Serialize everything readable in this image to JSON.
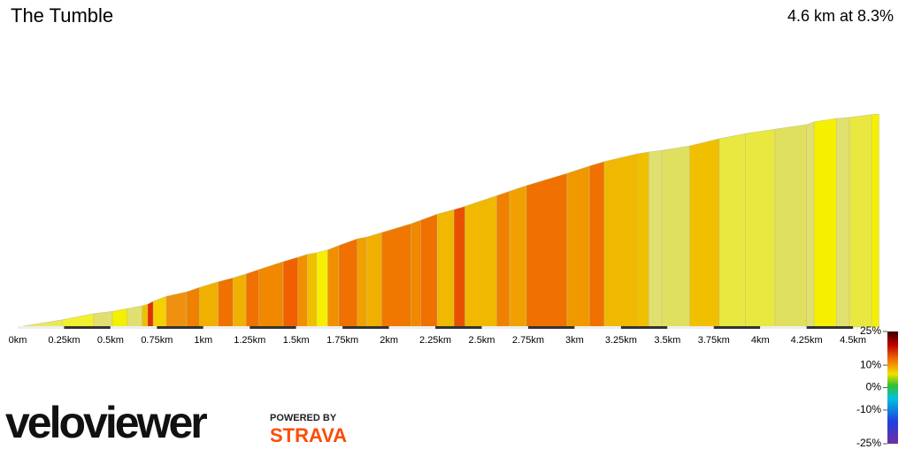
{
  "chart_data": {
    "type": "area",
    "title": "The Tumble",
    "subtitle": "4.6 km at 8.3%",
    "x": [
      0,
      0.24,
      0.41,
      0.51,
      0.59,
      0.67,
      0.7,
      0.73,
      0.8,
      0.91,
      0.98,
      1.08,
      1.16,
      1.23,
      1.3,
      1.43,
      1.51,
      1.56,
      1.61,
      1.67,
      1.73,
      1.83,
      1.88,
      1.96,
      2.12,
      2.17,
      2.26,
      2.35,
      2.41,
      2.58,
      2.65,
      2.74,
      2.96,
      3.08,
      3.16,
      3.34,
      3.4,
      3.47,
      3.62,
      3.78,
      3.92,
      4.08,
      4.25,
      4.29,
      4.41,
      4.48,
      4.6,
      4.64
    ],
    "elevation": [
      0,
      13,
      24,
      28,
      33,
      38,
      41,
      46,
      55,
      63,
      71,
      81,
      88,
      95,
      103,
      117,
      125,
      130,
      133,
      138,
      146,
      158,
      161,
      169,
      185,
      191,
      202,
      210,
      216,
      235,
      243,
      253,
      275,
      288,
      296,
      310,
      313,
      316,
      324,
      337,
      346,
      354,
      362,
      367,
      373,
      375,
      380,
      381
    ],
    "segment_colors": [
      "#e8e860",
      "#f0f030",
      "#e0e070",
      "#f5f000",
      "#e0e070",
      "#f0c000",
      "#e03000",
      "#f5d000",
      "#f09010",
      "#f08000",
      "#f0b000",
      "#f07000",
      "#f0b000",
      "#f07000",
      "#f08800",
      "#f06000",
      "#f09000",
      "#f0c000",
      "#f5f000",
      "#f09000",
      "#f07000",
      "#f0a000",
      "#f0b000",
      "#f07800",
      "#f08800",
      "#f07000",
      "#f0b800",
      "#e85000",
      "#f0b800",
      "#f08000",
      "#f0a000",
      "#f07000",
      "#f09800",
      "#f07000",
      "#f0b800",
      "#f0c000",
      "#e0e070",
      "#e0e060",
      "#f0c000",
      "#e8e840",
      "#e8e840",
      "#e0e060",
      "#e0e070",
      "#f5f000",
      "#e0e070",
      "#e8e840",
      "#f5f000"
    ],
    "xlim": [
      0,
      4.64
    ],
    "ylim": [
      0,
      400
    ],
    "xticks": [
      {
        "value": 0,
        "label": "0km"
      },
      {
        "value": 0.25,
        "label": "0.25km"
      },
      {
        "value": 0.5,
        "label": "0.5km"
      },
      {
        "value": 0.75,
        "label": "0.75km"
      },
      {
        "value": 1,
        "label": "1km"
      },
      {
        "value": 1.25,
        "label": "1.25km"
      },
      {
        "value": 1.5,
        "label": "1.5km"
      },
      {
        "value": 1.75,
        "label": "1.75km"
      },
      {
        "value": 2,
        "label": "2km"
      },
      {
        "value": 2.25,
        "label": "2.25km"
      },
      {
        "value": 2.5,
        "label": "2.5km"
      },
      {
        "value": 2.75,
        "label": "2.75km"
      },
      {
        "value": 3,
        "label": "3km"
      },
      {
        "value": 3.25,
        "label": "3.25km"
      },
      {
        "value": 3.5,
        "label": "3.5km"
      },
      {
        "value": 3.75,
        "label": "3.75km"
      },
      {
        "value": 4,
        "label": "4km"
      },
      {
        "value": 4.25,
        "label": "4.25km"
      },
      {
        "value": 4.5,
        "label": "4.5km"
      }
    ],
    "gradient_scale": {
      "lim": [
        -25,
        25
      ],
      "ticks": [
        {
          "value": 25,
          "label": "25%"
        },
        {
          "value": 10,
          "label": "10%"
        },
        {
          "value": 0,
          "label": "0%"
        },
        {
          "value": -10,
          "label": "-10%"
        },
        {
          "value": -25,
          "label": "-25%"
        }
      ]
    },
    "brand": "veloviewer",
    "powered_by": "POWERED BY",
    "partner": "STRAVA"
  }
}
